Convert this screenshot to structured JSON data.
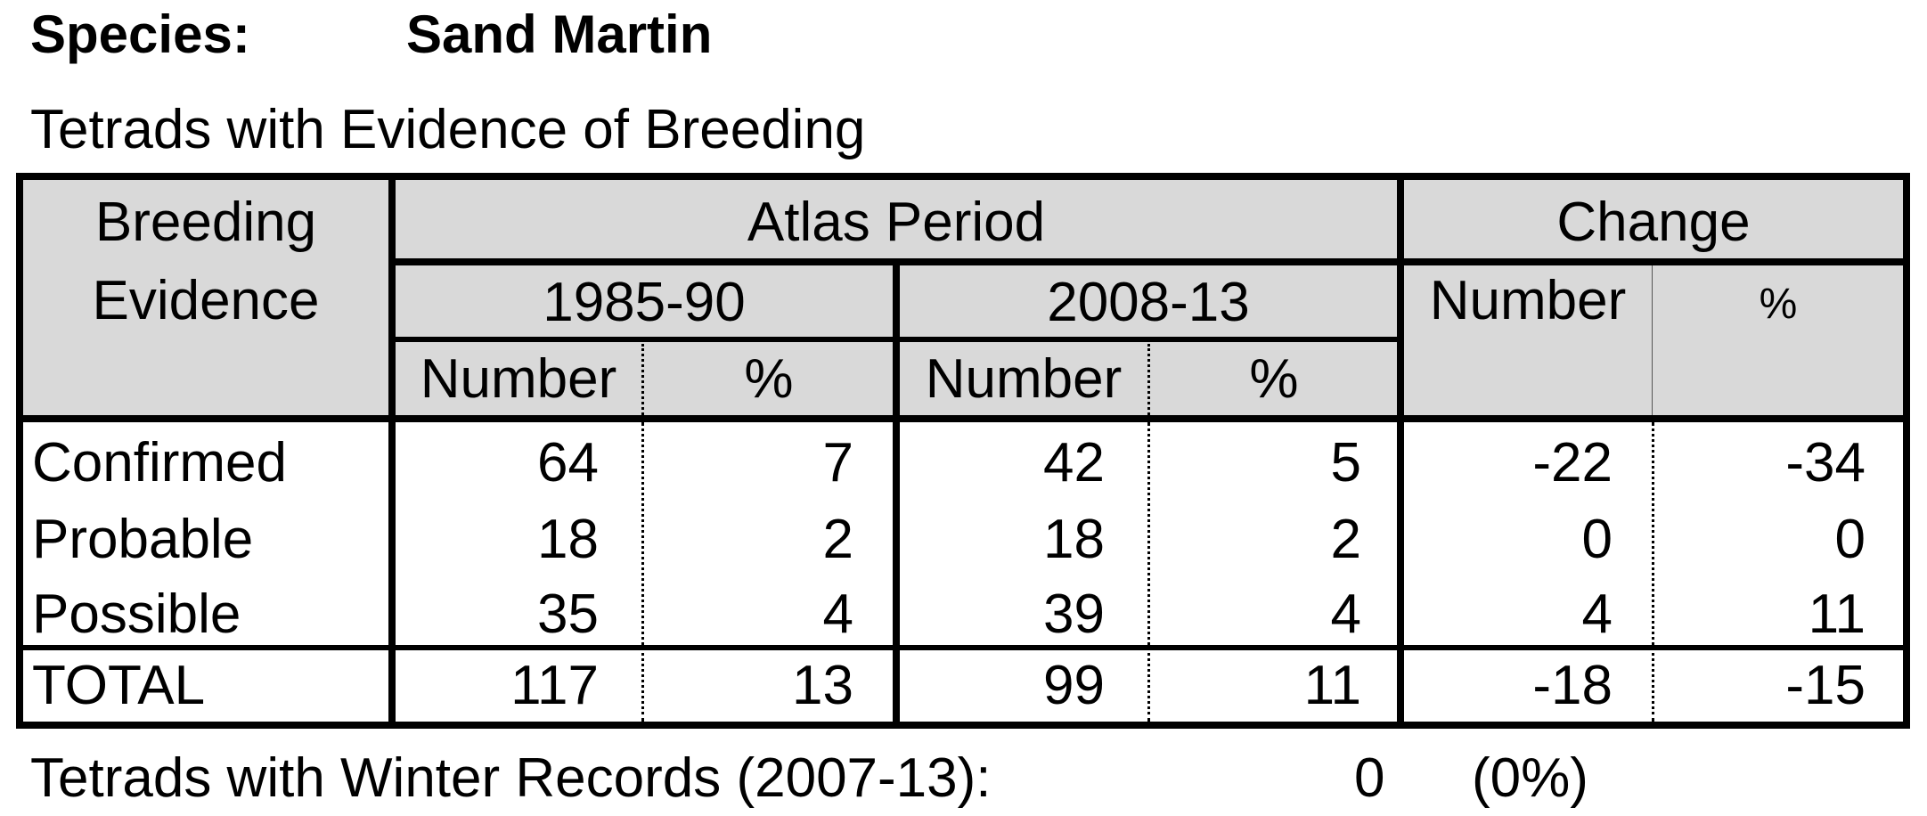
{
  "header": {
    "species_label": "Species:",
    "species_name": "Sand Martin",
    "subtitle": "Tetrads with Evidence of Breeding"
  },
  "table": {
    "col_breeding_evidence": [
      "Breeding",
      "Evidence"
    ],
    "atlas_period": "Atlas Period",
    "change": "Change",
    "period_1": "1985-90",
    "period_2": "2008-13",
    "number": "Number",
    "percent": "%",
    "rows": [
      {
        "label": "Confirmed",
        "n1": "64",
        "p1": "7",
        "n2": "42",
        "p2": "5",
        "cn": "-22",
        "cp": "-34"
      },
      {
        "label": "Probable",
        "n1": "18",
        "p1": "2",
        "n2": "18",
        "p2": "2",
        "cn": "0",
        "cp": "0"
      },
      {
        "label": "Possible",
        "n1": "35",
        "p1": "4",
        "n2": "39",
        "p2": "4",
        "cn": "4",
        "cp": "11"
      }
    ],
    "total": {
      "label": "TOTAL",
      "n1": "117",
      "p1": "13",
      "n2": "99",
      "p2": "11",
      "cn": "-18",
      "cp": "-15"
    }
  },
  "footer": {
    "label": "Tetrads with Winter Records (2007-13):",
    "count": "0",
    "percent": "(0%)"
  }
}
